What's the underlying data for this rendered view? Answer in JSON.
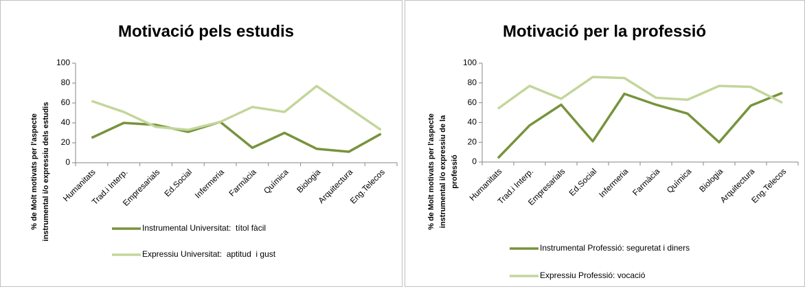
{
  "chart_data": [
    {
      "type": "line",
      "title": "Motivació pels estudis",
      "ylabel": [
        "% de Molt motivats per l'aspecte",
        "instrumental i/o expressiu dels estudis"
      ],
      "categories": [
        "Humanitats",
        "Trad.i Interp.",
        "Empresarials",
        "Ed.Social",
        "Infermeria",
        "Farmàcia",
        "Química",
        "Biologia",
        "Arquitectura",
        "Eng.Telecos"
      ],
      "series": [
        {
          "name": "Instrumental Universitat:  títol fàcil",
          "color": "#77933c",
          "values": [
            25,
            40,
            38,
            31,
            41,
            15,
            30,
            14,
            11,
            29
          ]
        },
        {
          "name": "Expressiu Universitat:  aptitud  i gust",
          "color": "#c3d69b",
          "values": [
            62,
            51,
            36,
            33,
            41,
            56,
            51,
            77,
            55,
            33
          ]
        }
      ],
      "ylim": [
        0,
        100
      ],
      "yticks": [
        0,
        20,
        40,
        60,
        80,
        100
      ],
      "legend": "bottom"
    },
    {
      "type": "line",
      "title": "Motivació per la professió",
      "ylabel": [
        "% de Molt motivats per l'aspecte",
        "instrumental i/o expressiu de la",
        "professió"
      ],
      "categories": [
        "Humanitats",
        "Trad.i Interp.",
        "Empresarials",
        "Ed.Social",
        "Infermeria",
        "Farmàcia",
        "Química",
        "Biologia",
        "Arquitectura",
        "Eng.Telecos"
      ],
      "series": [
        {
          "name": "Instrumental Professió: seguretat i diners",
          "color": "#77933c",
          "values": [
            4,
            37,
            58,
            21,
            69,
            58,
            49,
            20,
            57,
            70
          ]
        },
        {
          "name": "Expressiu Professió: vocació",
          "color": "#c3d69b",
          "values": [
            54,
            77,
            64,
            86,
            85,
            65,
            63,
            77,
            76,
            60
          ]
        }
      ],
      "ylim": [
        0,
        100
      ],
      "yticks": [
        0,
        20,
        40,
        60,
        80,
        100
      ],
      "legend": "bottom"
    }
  ]
}
